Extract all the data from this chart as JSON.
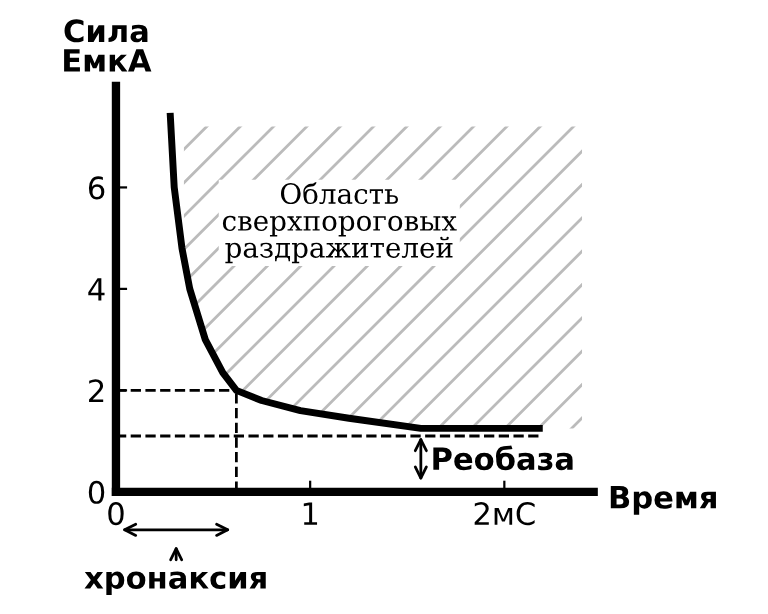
{
  "chart_data": {
    "type": "line",
    "ylabel": "Сила\nЕмкА",
    "xlabel": "Время",
    "x": [
      0.28,
      0.3,
      0.34,
      0.38,
      0.46,
      0.55,
      0.62,
      0.75,
      0.95,
      1.2,
      1.57,
      1.8,
      2.18
    ],
    "series": [
      {
        "color": "#000000",
        "values": [
          7.4,
          6.0,
          4.8,
          4.0,
          3.0,
          2.35,
          2.0,
          1.8,
          1.6,
          1.45,
          1.25,
          1.25,
          1.25
        ]
      },
      {
        "type": "area",
        "color": "#bbbbbb",
        "x": [
          0.35,
          0.38,
          0.46,
          0.55,
          0.62,
          0.75,
          0.95,
          1.2,
          1.57,
          1.8,
          2.18,
          2.4
        ],
        "values": [
          7.2,
          7.2,
          7.2,
          7.2,
          7.2,
          7.2,
          7.2,
          7.2,
          7.2,
          7.2,
          7.2,
          7.2
        ]
      }
    ],
    "xlim": [
      0,
      2.46
    ],
    "ylim": [
      0,
      8
    ],
    "xticks": [
      0,
      1,
      {
        "value": 2,
        "label": "2мС"
      }
    ],
    "yticks": [
      0,
      2,
      4,
      6
    ],
    "ref_lines": [
      {
        "axis": "y",
        "value": 2,
        "line_style": "dashed"
      },
      {
        "axis": "y",
        "value": 1.1,
        "line_style": "dashed"
      },
      {
        "axis": "x",
        "value": 0.62,
        "line_style": "dashed"
      }
    ],
    "annotations": [
      "Область\nсверхпороговых\nраздражителей",
      "Реобаза",
      "хронаксия"
    ],
    "grid": false,
    "marker": "none",
    "line_style": "solid"
  }
}
